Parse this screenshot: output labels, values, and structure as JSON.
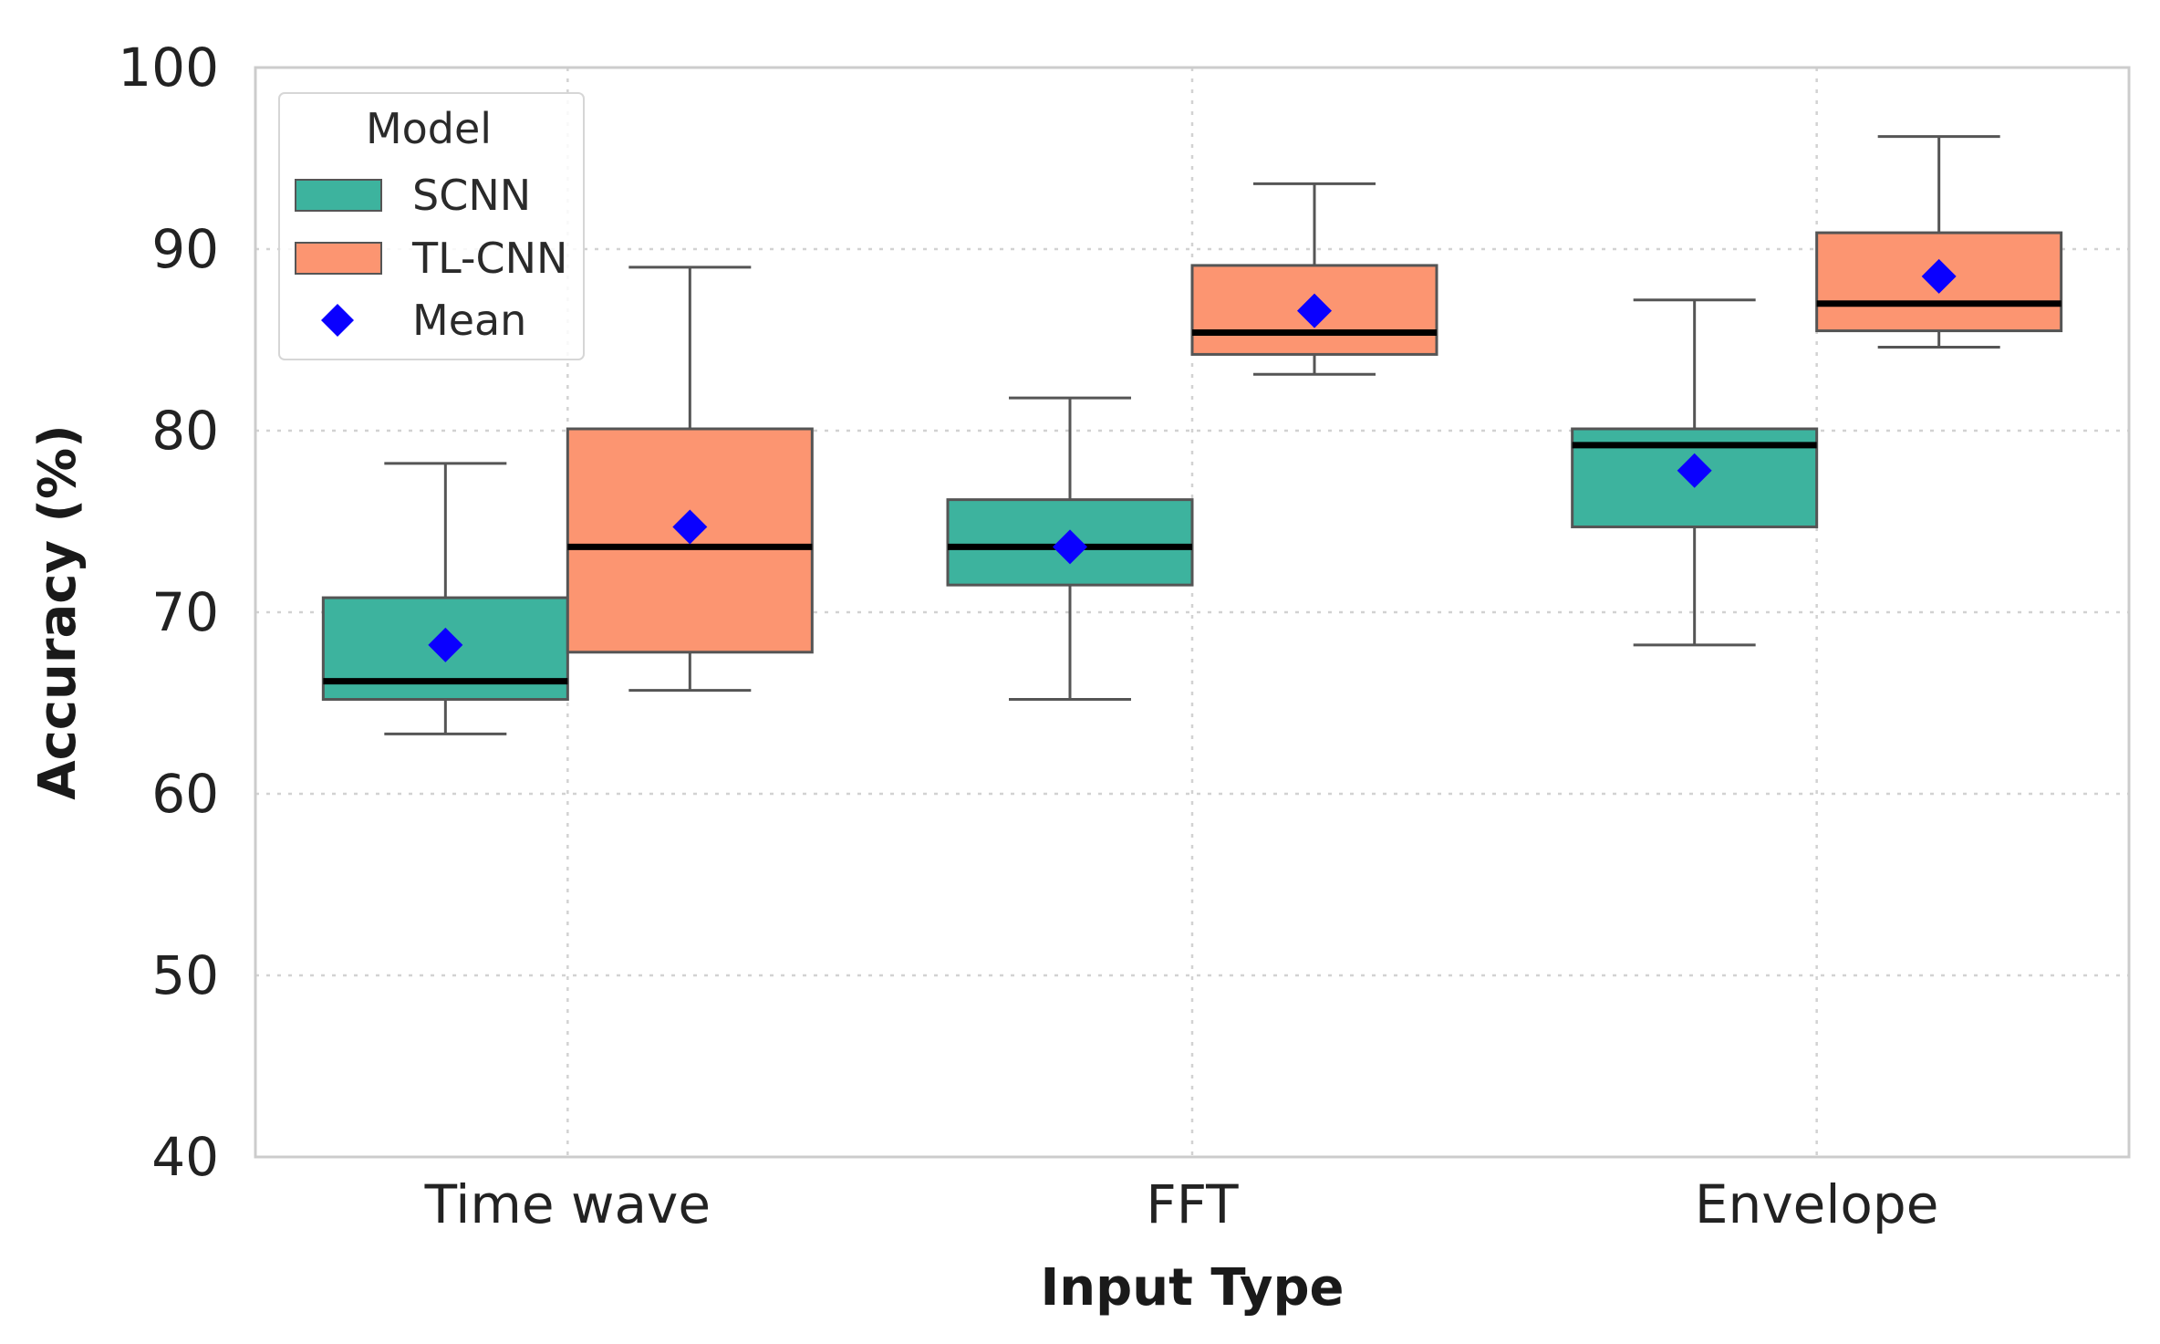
{
  "chart_data": {
    "type": "boxplot",
    "title": "",
    "xlabel": "Input Type",
    "ylabel": "Accuracy (%)",
    "ylim": [
      40,
      100
    ],
    "yticks": [
      40,
      50,
      60,
      70,
      80,
      90,
      100
    ],
    "categories": [
      "Time wave",
      "FFT",
      "Envelope"
    ],
    "grid": true,
    "legend": {
      "title": "Model",
      "placement": "top-left",
      "entries": [
        "SCNN",
        "TL-CNN",
        "Mean"
      ]
    },
    "series": [
      {
        "name": "SCNN",
        "color": "#3db39e",
        "boxes": [
          {
            "whisker_low": 63.3,
            "q1": 65.2,
            "median": 66.2,
            "q3": 70.8,
            "whisker_high": 78.2,
            "mean": 68.2
          },
          {
            "whisker_low": 65.2,
            "q1": 71.5,
            "median": 73.6,
            "q3": 76.2,
            "whisker_high": 81.8,
            "mean": 73.6
          },
          {
            "whisker_low": 68.2,
            "q1": 74.7,
            "median": 79.2,
            "q3": 80.1,
            "whisker_high": 87.2,
            "mean": 77.8
          }
        ]
      },
      {
        "name": "TL-CNN",
        "color": "#fc9571",
        "boxes": [
          {
            "whisker_low": 65.7,
            "q1": 67.8,
            "median": 73.6,
            "q3": 80.1,
            "whisker_high": 89.0,
            "mean": 74.7
          },
          {
            "whisker_low": 83.1,
            "q1": 84.2,
            "median": 85.4,
            "q3": 89.1,
            "whisker_high": 93.6,
            "mean": 86.6
          },
          {
            "whisker_low": 84.6,
            "q1": 85.5,
            "median": 87.0,
            "q3": 90.9,
            "whisker_high": 96.2,
            "mean": 88.5
          }
        ]
      }
    ],
    "mean_marker": {
      "label": "Mean",
      "color": "#0a00ff",
      "shape": "diamond"
    },
    "colors": {
      "grid": "#d2d2d2",
      "frame": "#cccccc",
      "whisker": "#555555",
      "median": "#000000"
    }
  }
}
